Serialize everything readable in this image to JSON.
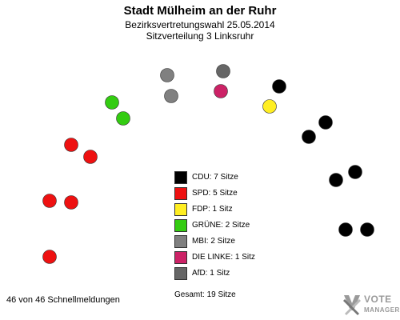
{
  "chart_data": {
    "type": "parliament",
    "title": "Stadt Mülheim an der Ruhr",
    "subtitle": "Bezirksvertretungswahl 25.05.2014",
    "subtitle2": "Sitzverteilung 3 Linksruhr",
    "parties": [
      {
        "name": "CDU",
        "seats": 7,
        "label": "CDU: 7 Sitze",
        "color": "#000000"
      },
      {
        "name": "SPD",
        "seats": 5,
        "label": "SPD: 5 Sitze",
        "color": "#ee1111"
      },
      {
        "name": "FDP",
        "seats": 1,
        "label": "FDP: 1 Sitz",
        "color": "#ffee22"
      },
      {
        "name": "GRÜNE",
        "seats": 2,
        "label": "GRÜNE: 2 Sitze",
        "color": "#33cc11"
      },
      {
        "name": "MBI",
        "seats": 2,
        "label": "MBI: 2 Sitze",
        "color": "#808080"
      },
      {
        "name": "DIE LINKE",
        "seats": 1,
        "label": "DIE LINKE: 1 Sitz",
        "color": "#cc2266"
      },
      {
        "name": "AfD",
        "seats": 1,
        "label": "AfD: 1 Sitz",
        "color": "#666666"
      }
    ],
    "total_seats": 19,
    "total_label": "Gesamt: 19 Sitze"
  },
  "footer": {
    "reports": "46 von 46 Schnellmeldungen"
  },
  "logo": {
    "line1": "VOTE",
    "line2": "MANAGER"
  },
  "colors": {
    "seat_border": "#333333",
    "logo_gray": "#9a9a9a"
  }
}
